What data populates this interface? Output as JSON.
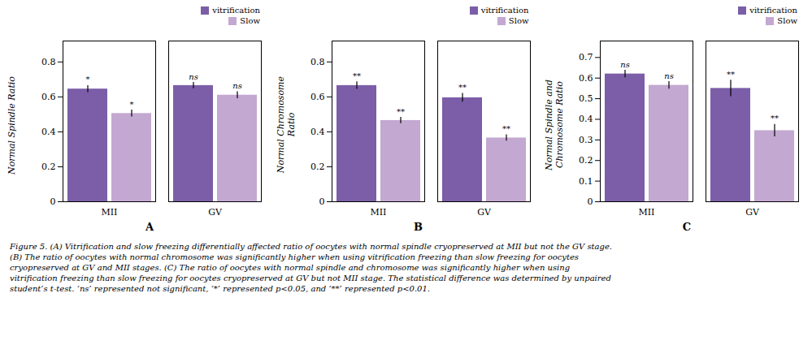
{
  "chart_data": [
    {
      "type": "bar",
      "title": "A",
      "ylabel": "Normal Spindle Ratio",
      "categories": [
        "MII",
        "GV"
      ],
      "series": [
        {
          "name": "vitrification",
          "color": "#7B5EA7",
          "values": [
            0.645,
            0.665
          ],
          "errors": [
            0.02,
            0.018
          ],
          "annotations": [
            "*",
            "ns"
          ]
        },
        {
          "name": "Slow",
          "color": "#C3A8D1",
          "values": [
            0.505,
            0.61
          ],
          "errors": [
            0.02,
            0.02
          ],
          "annotations": [
            "*",
            "ns"
          ]
        }
      ],
      "ylim": [
        0,
        0.92
      ],
      "yticks": [
        0,
        0.2,
        0.4,
        0.6,
        0.8
      ],
      "legend": "upper right"
    },
    {
      "type": "bar",
      "title": "B",
      "ylabel": "Normal Chromosome\nRatio",
      "categories": [
        "MII",
        "GV"
      ],
      "series": [
        {
          "name": "vitrification",
          "color": "#7B5EA7",
          "values": [
            0.665,
            0.595
          ],
          "errors": [
            0.022,
            0.025
          ],
          "annotations": [
            "**",
            "**"
          ]
        },
        {
          "name": "Slow",
          "color": "#C3A8D1",
          "values": [
            0.465,
            0.365
          ],
          "errors": [
            0.018,
            0.018
          ],
          "annotations": [
            "**",
            "**"
          ]
        }
      ],
      "ylim": [
        0,
        0.92
      ],
      "yticks": [
        0,
        0.2,
        0.4,
        0.6,
        0.8
      ],
      "legend": "upper right"
    },
    {
      "type": "bar",
      "title": "C",
      "ylabel": "Normal Spindle and\nChromosome Ratio",
      "categories": [
        "MII",
        "GV"
      ],
      "series": [
        {
          "name": "vitrification",
          "color": "#7B5EA7",
          "values": [
            0.62,
            0.55
          ],
          "errors": [
            0.018,
            0.04
          ],
          "annotations": [
            "ns",
            "**"
          ]
        },
        {
          "name": "Slow",
          "color": "#C3A8D1",
          "values": [
            0.565,
            0.345
          ],
          "errors": [
            0.018,
            0.03
          ],
          "annotations": [
            "ns",
            "**"
          ]
        }
      ],
      "ylim": [
        0,
        0.78
      ],
      "yticks": [
        0,
        0.1,
        0.2,
        0.3,
        0.4,
        0.5,
        0.6,
        0.7
      ],
      "legend": "upper right"
    }
  ],
  "caption": [
    "Figure 5. (A) Vitrification and slow freezing differentially affected ratio of oocytes with normal spindle cryopreserved at MII but not the GV stage.",
    "(B) The ratio of oocytes with normal chromosome was significantly higher when using vitrification freezing than slow freezing for oocytes",
    "cryopreserved at GV and MII stages. (C) The ratio of oocytes with normal spindle and chromosome was significantly higher when using",
    "vitrification freezing than slow freezing for oocytes cryopreserved at GV but not MII stage. The statistical difference was determined by unpaired",
    "student’s t-test. ‘ns’ represented not significant, ‘*’ represented p<0.05, and ‘**’ represented p<0.01."
  ]
}
